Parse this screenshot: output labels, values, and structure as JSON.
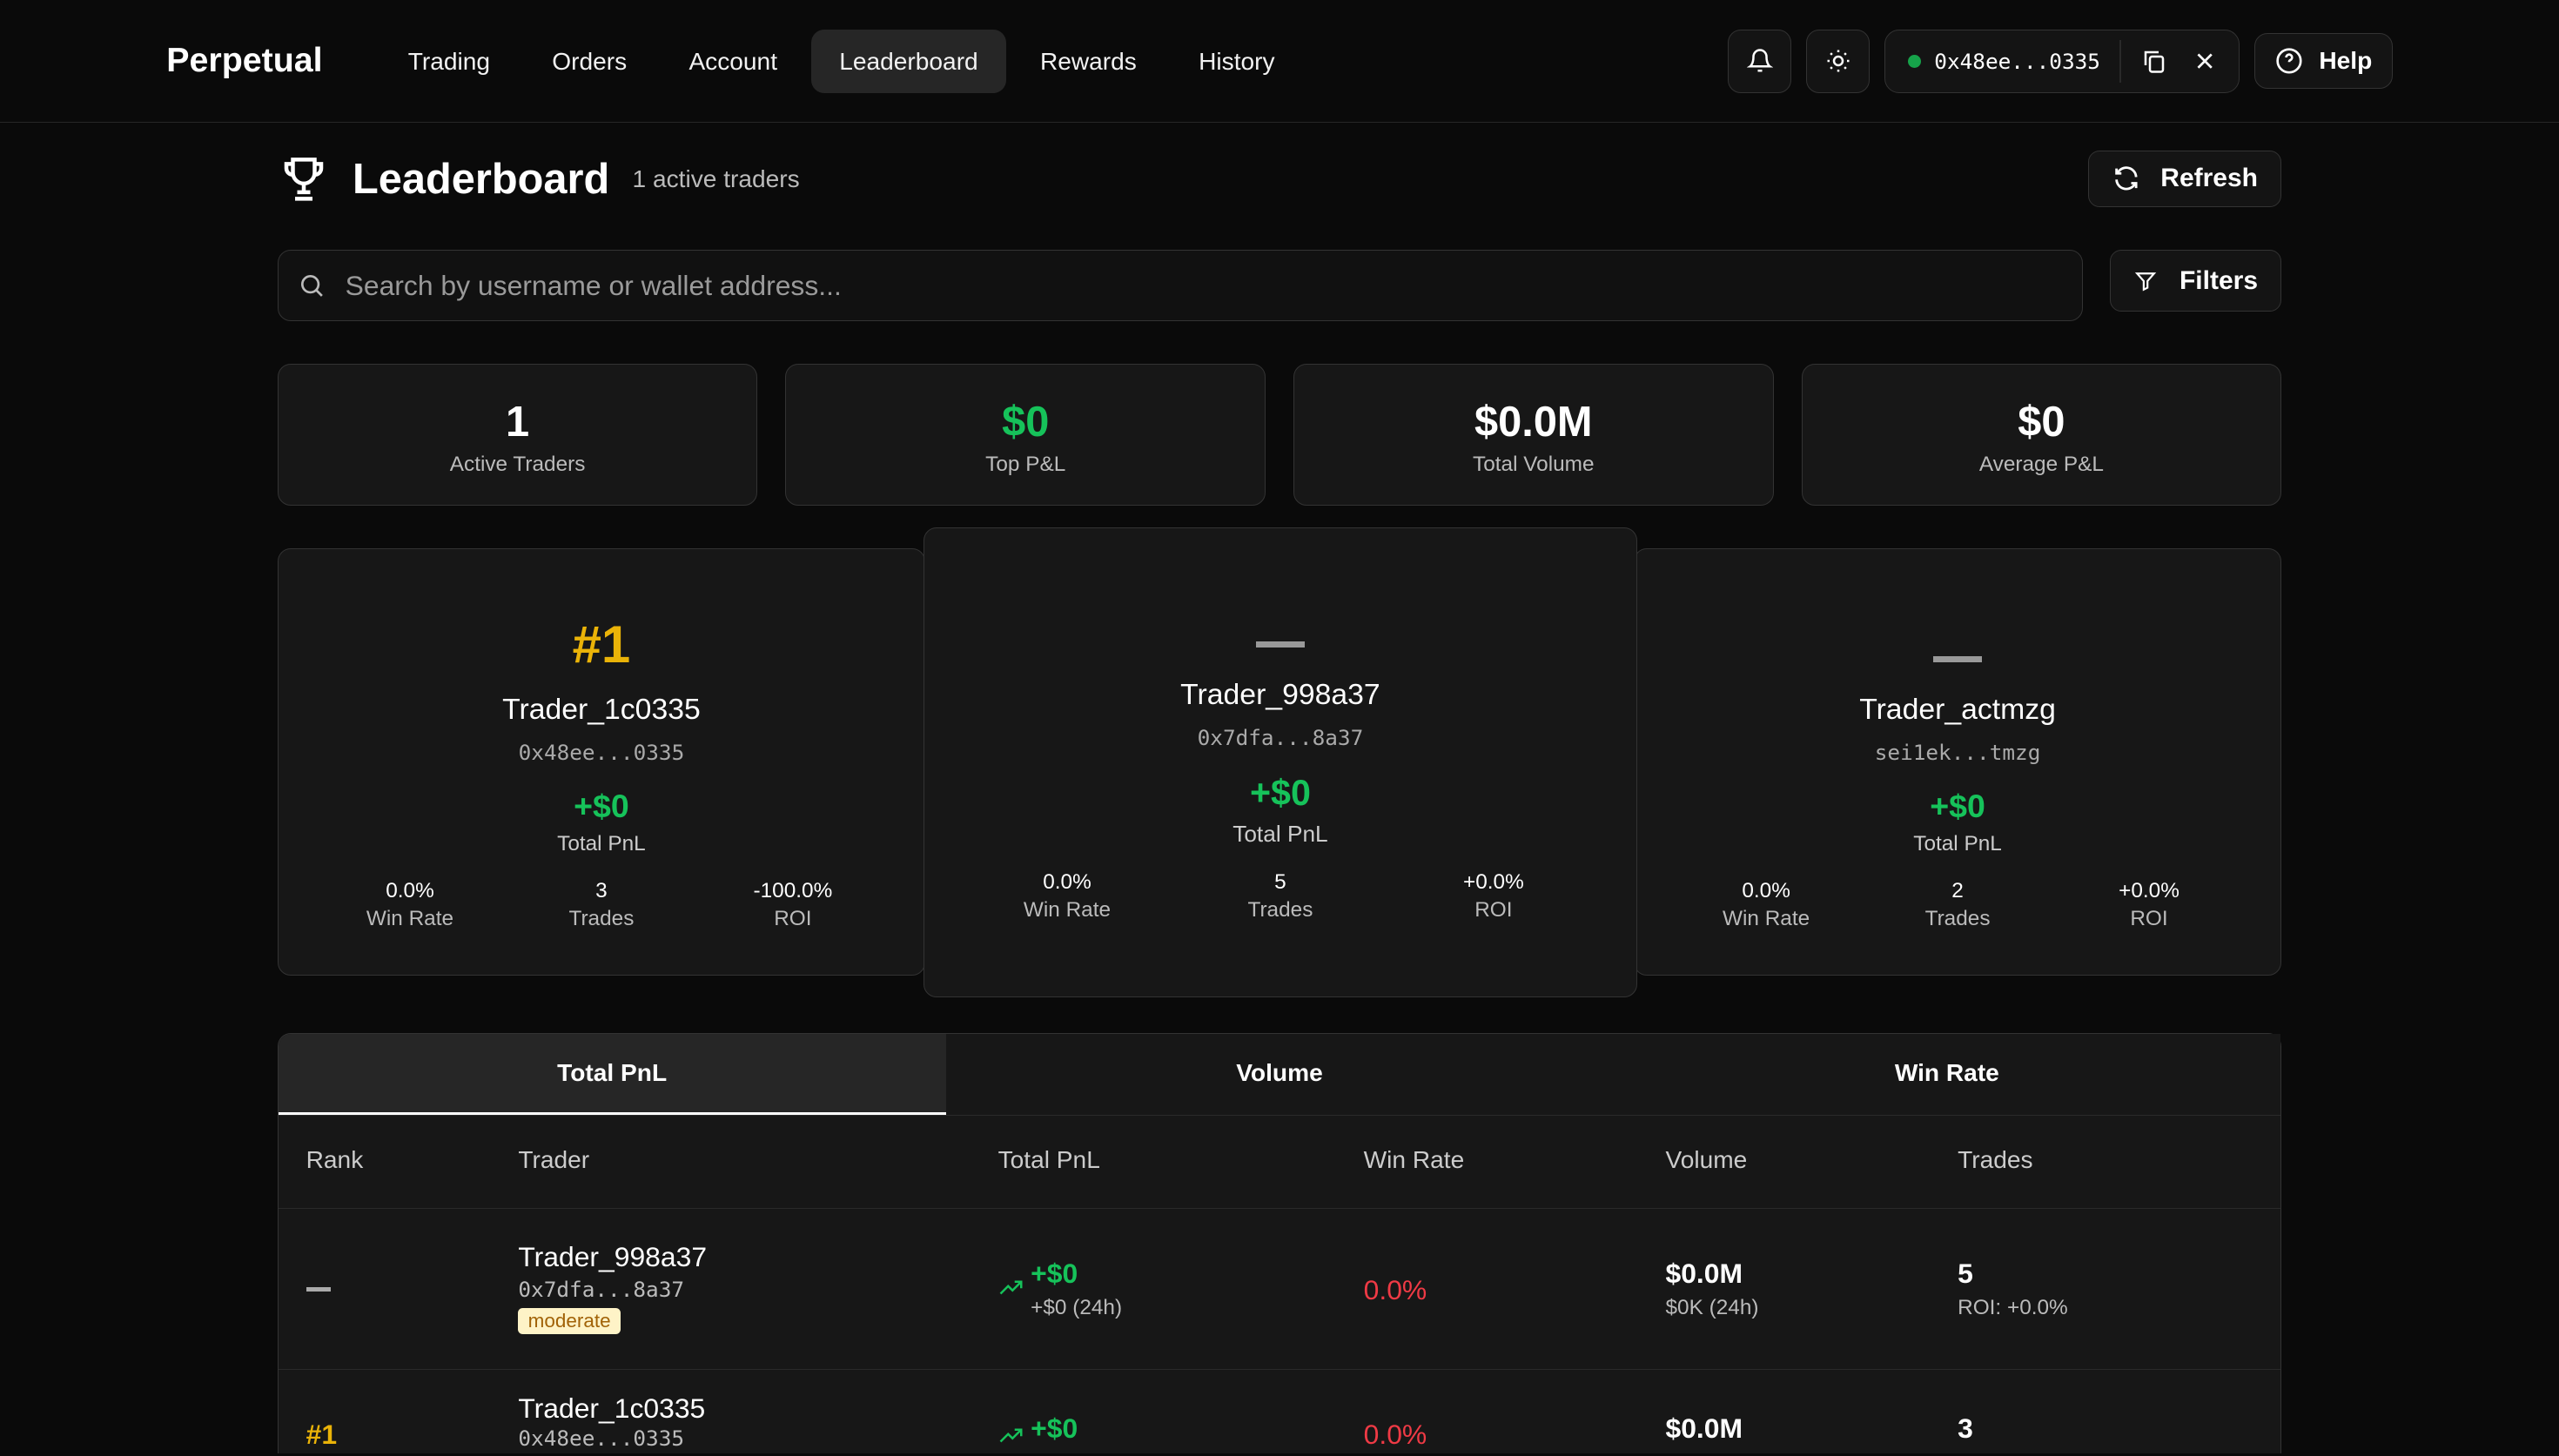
{
  "nav": {
    "logo": "Perpetual",
    "items": [
      "Trading",
      "Orders",
      "Account",
      "Leaderboard",
      "Rewards",
      "History"
    ],
    "active": "Leaderboard",
    "wallet": "0x48ee...0335",
    "help": "Help"
  },
  "header": {
    "title": "Leaderboard",
    "subtitle": "1 active traders",
    "refresh": "Refresh"
  },
  "search": {
    "placeholder": "Search by username or wallet address...",
    "value": ""
  },
  "filters": "Filters",
  "stats": [
    {
      "value": "1",
      "label": "Active Traders"
    },
    {
      "value": "$0",
      "label": "Top P&L"
    },
    {
      "value": "$0.0M",
      "label": "Total Volume"
    },
    {
      "value": "$0",
      "label": "Average P&L"
    }
  ],
  "podium": [
    {
      "rank": "#1",
      "name": "Trader_1c0335",
      "address": "0x48ee...0335",
      "pnl": "+$0",
      "pnl_label": "Total PnL",
      "win_rate": "0.0%",
      "win_label": "Win Rate",
      "trades": "3",
      "trades_label": "Trades",
      "roi": "-100.0%",
      "roi_label": "ROI"
    },
    {
      "rank": "",
      "name": "Trader_998a37",
      "address": "0x7dfa...8a37",
      "pnl": "+$0",
      "pnl_label": "Total PnL",
      "win_rate": "0.0%",
      "win_label": "Win Rate",
      "trades": "5",
      "trades_label": "Trades",
      "roi": "+0.0%",
      "roi_label": "ROI"
    },
    {
      "rank": "",
      "name": "Trader_actmzg",
      "address": "sei1ek...tmzg",
      "pnl": "+$0",
      "pnl_label": "Total PnL",
      "win_rate": "0.0%",
      "win_label": "Win Rate",
      "trades": "2",
      "trades_label": "Trades",
      "roi": "+0.0%",
      "roi_label": "ROI"
    }
  ],
  "tabs": [
    "Total PnL",
    "Volume",
    "Win Rate"
  ],
  "active_tab": "Total PnL",
  "columns": [
    "Rank",
    "Trader",
    "Total PnL",
    "Win Rate",
    "Volume",
    "Trades"
  ],
  "rows": [
    {
      "rank": "",
      "name": "Trader_998a37",
      "address": "0x7dfa...8a37",
      "badge": "moderate",
      "pnl": "+$0",
      "pnl24": "+$0 (24h)",
      "win_rate": "0.0%",
      "volume": "$0.0M",
      "volume24": "$0K (24h)",
      "trades": "5",
      "roi": "ROI: +0.0%"
    },
    {
      "rank": "#1",
      "name": "Trader_1c0335",
      "address": "0x48ee...0335",
      "badge": "",
      "pnl": "+$0",
      "pnl24": "",
      "win_rate": "0.0%",
      "volume": "$0.0M",
      "volume24": "",
      "trades": "3",
      "roi": ""
    }
  ]
}
